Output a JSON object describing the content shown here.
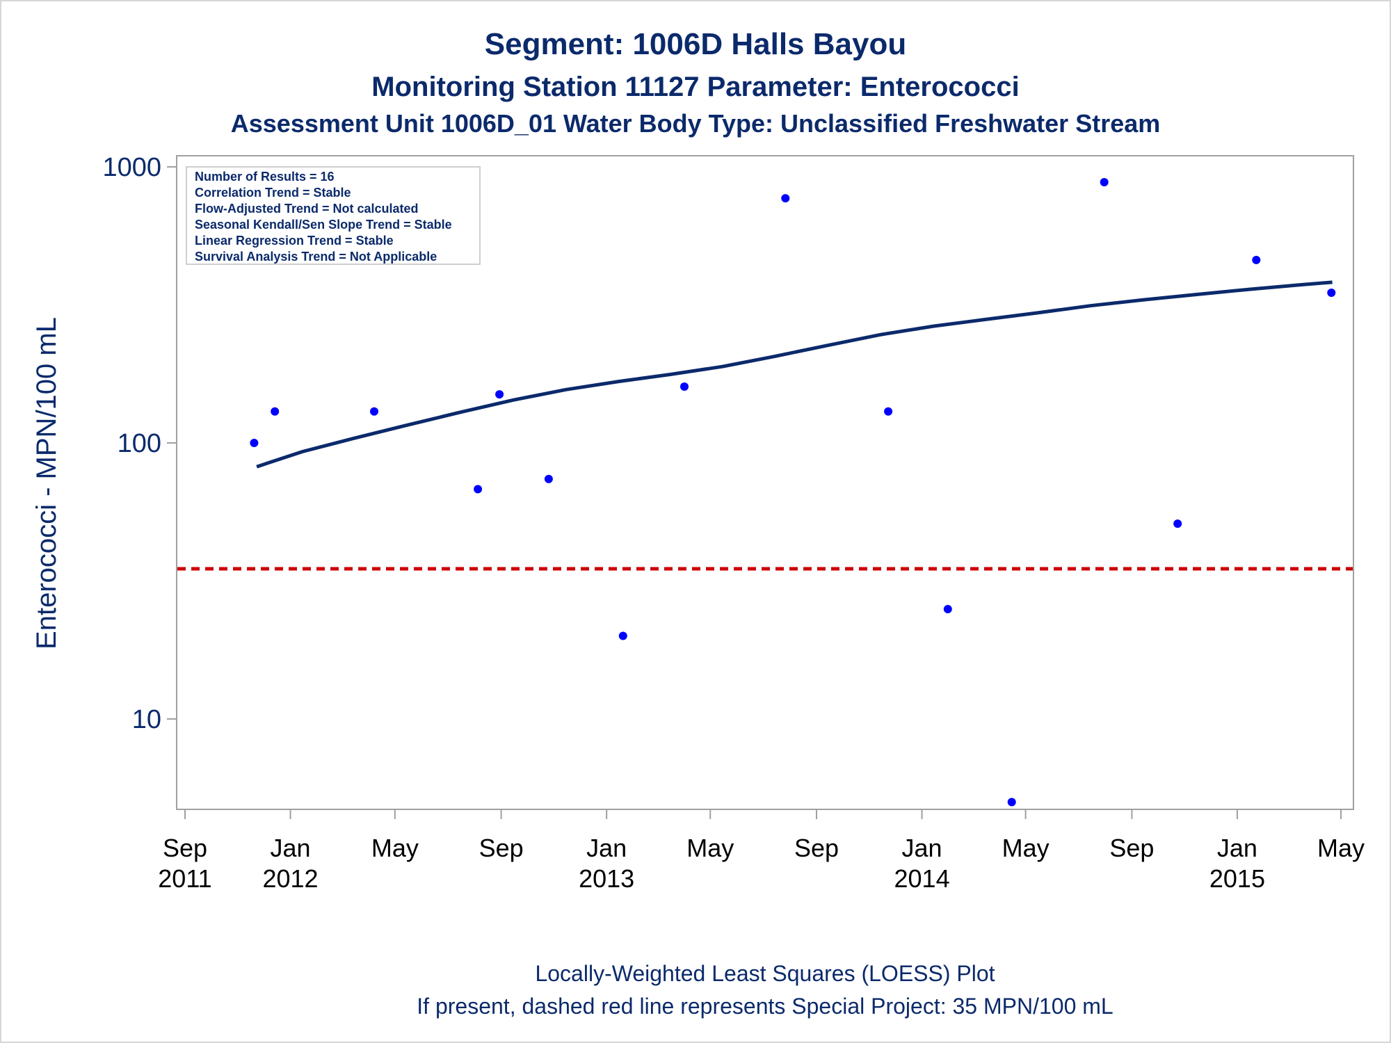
{
  "chart_data": {
    "type": "scatter",
    "title": "Segment: 1006D  Halls Bayou",
    "subtitle": "Monitoring Station 11127 Parameter: Enterococci",
    "subtitle2": "Assessment Unit 1006D_01   Water Body Type: Unclassified Freshwater Stream",
    "ylabel": "Enterococci - MPN/100 mL",
    "yscale": "log",
    "ylim": [
      5,
      1000
    ],
    "xlim": [
      "2011-09-01",
      "2015-05-01"
    ],
    "yticks": [
      {
        "value": 10,
        "label": "10"
      },
      {
        "value": 100,
        "label": "100"
      },
      {
        "value": 1000,
        "label": "1000"
      }
    ],
    "xticks": [
      {
        "date": "2011-09-01",
        "month": "Sep",
        "year": "2011"
      },
      {
        "date": "2012-01-01",
        "month": "Jan",
        "year": "2012"
      },
      {
        "date": "2012-05-01",
        "month": "May",
        "year": ""
      },
      {
        "date": "2012-09-01",
        "month": "Sep",
        "year": ""
      },
      {
        "date": "2013-01-01",
        "month": "Jan",
        "year": "2013"
      },
      {
        "date": "2013-05-01",
        "month": "May",
        "year": ""
      },
      {
        "date": "2013-09-01",
        "month": "Sep",
        "year": ""
      },
      {
        "date": "2014-01-01",
        "month": "Jan",
        "year": "2014"
      },
      {
        "date": "2014-05-01",
        "month": "May",
        "year": ""
      },
      {
        "date": "2014-09-01",
        "month": "Sep",
        "year": ""
      },
      {
        "date": "2015-01-01",
        "month": "Jan",
        "year": "2015"
      },
      {
        "date": "2015-05-01",
        "month": "May",
        "year": ""
      }
    ],
    "points": [
      {
        "x": "2011-11-20",
        "y": 100
      },
      {
        "x": "2011-12-14",
        "y": 130
      },
      {
        "x": "2012-04-07",
        "y": 130
      },
      {
        "x": "2012-08-05",
        "y": 68
      },
      {
        "x": "2012-08-30",
        "y": 150
      },
      {
        "x": "2012-10-26",
        "y": 74
      },
      {
        "x": "2013-01-20",
        "y": 20
      },
      {
        "x": "2013-04-01",
        "y": 160
      },
      {
        "x": "2013-07-27",
        "y": 770
      },
      {
        "x": "2013-11-23",
        "y": 130
      },
      {
        "x": "2014-01-31",
        "y": 25
      },
      {
        "x": "2014-04-15",
        "y": 5
      },
      {
        "x": "2014-07-31",
        "y": 880
      },
      {
        "x": "2014-10-24",
        "y": 51
      },
      {
        "x": "2015-01-23",
        "y": 460
      },
      {
        "x": "2015-04-20",
        "y": 350
      }
    ],
    "loess": [
      {
        "x": "2011-11-23",
        "y": 82
      },
      {
        "x": "2012-01-15",
        "y": 93
      },
      {
        "x": "2012-03-15",
        "y": 104
      },
      {
        "x": "2012-05-15",
        "y": 116
      },
      {
        "x": "2012-07-15",
        "y": 129
      },
      {
        "x": "2012-09-15",
        "y": 143
      },
      {
        "x": "2012-11-15",
        "y": 156
      },
      {
        "x": "2013-01-15",
        "y": 167
      },
      {
        "x": "2013-03-15",
        "y": 177
      },
      {
        "x": "2013-05-15",
        "y": 189
      },
      {
        "x": "2013-07-15",
        "y": 206
      },
      {
        "x": "2013-09-15",
        "y": 226
      },
      {
        "x": "2013-11-15",
        "y": 247
      },
      {
        "x": "2014-01-15",
        "y": 265
      },
      {
        "x": "2014-03-15",
        "y": 280
      },
      {
        "x": "2014-05-15",
        "y": 296
      },
      {
        "x": "2014-07-15",
        "y": 314
      },
      {
        "x": "2014-09-15",
        "y": 330
      },
      {
        "x": "2014-11-15",
        "y": 345
      },
      {
        "x": "2015-01-15",
        "y": 360
      },
      {
        "x": "2015-03-15",
        "y": 374
      },
      {
        "x": "2015-04-21",
        "y": 382
      }
    ],
    "reference_line": {
      "y": 35
    },
    "stats": [
      "Number of Results = 16",
      "Correlation Trend = Stable",
      "Flow-Adjusted Trend = Not calculated",
      "Seasonal Kendall/Sen Slope Trend = Stable",
      "Linear Regression Trend = Stable",
      "Survival Analysis Trend = Not Applicable"
    ],
    "footnote1": "Locally-Weighted Least Squares (LOESS) Plot",
    "footnote2": "If present, dashed red line represents Special Project: 35 MPN/100 mL",
    "colors": {
      "points": "#0000ff",
      "loess": "#0b2a6b",
      "reference": "#cc0000",
      "text": "#0b2a6b",
      "axis": "#a0a0a0"
    }
  }
}
